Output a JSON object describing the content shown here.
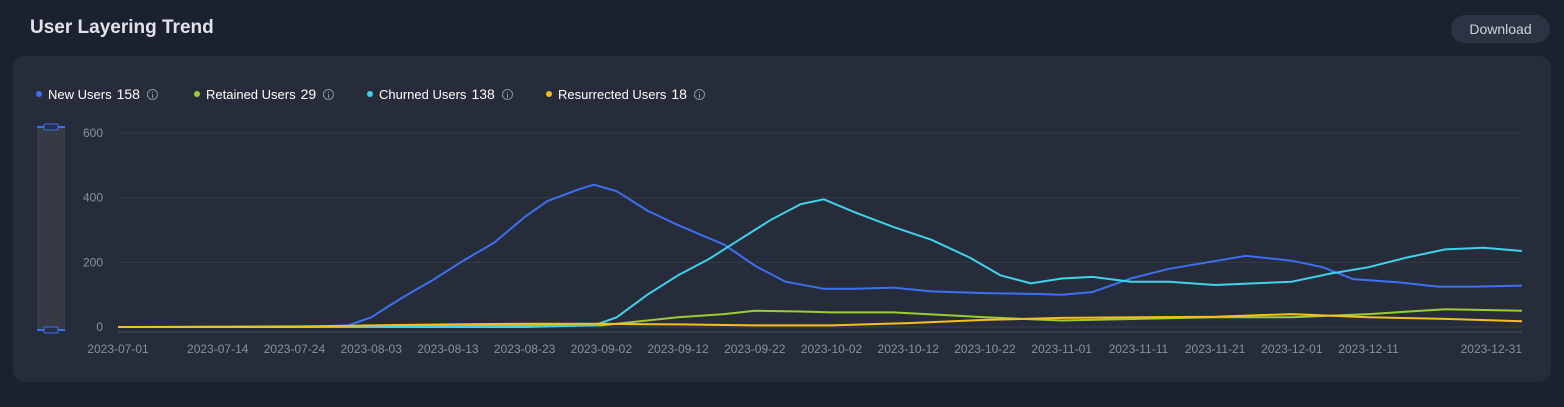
{
  "header": {
    "title": "User Layering Trend",
    "download_label": "Download"
  },
  "legend": [
    {
      "label": "New Users",
      "value": "158",
      "color": "#3c70f0"
    },
    {
      "label": "Retained Users",
      "value": "29",
      "color": "#9acd32"
    },
    {
      "label": "Churned Users",
      "value": "138",
      "color": "#3fd2ee"
    },
    {
      "label": "Resurrected Users",
      "value": "18",
      "color": "#f5be1e"
    }
  ],
  "chart_data": {
    "type": "line",
    "ylim": [
      0,
      600
    ],
    "yticks": [
      0,
      200,
      400,
      600
    ],
    "xlim": [
      "2023-07-01",
      "2023-12-31"
    ],
    "xticks": [
      "2023-07-01",
      "2023-07-14",
      "2023-07-24",
      "2023-08-03",
      "2023-08-13",
      "2023-08-23",
      "2023-09-02",
      "2023-09-12",
      "2023-09-22",
      "2023-10-02",
      "2023-10-12",
      "2023-10-22",
      "2023-11-01",
      "2023-11-11",
      "2023-11-21",
      "2023-12-01",
      "2023-12-11",
      "2023-12-31"
    ],
    "grid": true,
    "legend_position": "top-left",
    "series": [
      {
        "name": "New Users",
        "color": "#3c70f0",
        "x": [
          "2023-07-01",
          "2023-07-20",
          "2023-07-26",
          "2023-07-31",
          "2023-08-03",
          "2023-08-07",
          "2023-08-11",
          "2023-08-15",
          "2023-08-19",
          "2023-08-23",
          "2023-08-26",
          "2023-08-30",
          "2023-09-01",
          "2023-09-04",
          "2023-09-08",
          "2023-09-12",
          "2023-09-15",
          "2023-09-18",
          "2023-09-22",
          "2023-09-26",
          "2023-10-01",
          "2023-10-05",
          "2023-10-10",
          "2023-10-15",
          "2023-10-22",
          "2023-10-29",
          "2023-11-01",
          "2023-11-05",
          "2023-11-10",
          "2023-11-15",
          "2023-11-20",
          "2023-11-25",
          "2023-12-01",
          "2023-12-05",
          "2023-12-09",
          "2023-12-15",
          "2023-12-20",
          "2023-12-25",
          "2023-12-31"
        ],
        "y": [
          0,
          0,
          2,
          5,
          30,
          90,
          145,
          205,
          260,
          340,
          390,
          425,
          440,
          420,
          360,
          315,
          285,
          255,
          190,
          140,
          118,
          118,
          122,
          110,
          105,
          102,
          100,
          108,
          150,
          180,
          200,
          220,
          205,
          185,
          148,
          138,
          125,
          125,
          128
        ]
      },
      {
        "name": "Retained Users",
        "color": "#9acd32",
        "x": [
          "2023-07-01",
          "2023-08-03",
          "2023-08-23",
          "2023-09-02",
          "2023-09-06",
          "2023-09-12",
          "2023-09-18",
          "2023-09-22",
          "2023-09-28",
          "2023-10-02",
          "2023-10-10",
          "2023-10-16",
          "2023-10-22",
          "2023-11-01",
          "2023-11-11",
          "2023-11-21",
          "2023-12-01",
          "2023-12-11",
          "2023-12-21",
          "2023-12-31"
        ],
        "y": [
          0,
          3,
          5,
          5,
          15,
          30,
          40,
          50,
          48,
          45,
          45,
          38,
          30,
          20,
          25,
          30,
          30,
          40,
          55,
          50
        ]
      },
      {
        "name": "Churned Users",
        "color": "#3fd2ee",
        "x": [
          "2023-07-01",
          "2023-08-23",
          "2023-09-01",
          "2023-09-04",
          "2023-09-08",
          "2023-09-12",
          "2023-09-16",
          "2023-09-20",
          "2023-09-24",
          "2023-09-28",
          "2023-10-01",
          "2023-10-05",
          "2023-10-10",
          "2023-10-15",
          "2023-10-20",
          "2023-10-24",
          "2023-10-28",
          "2023-11-01",
          "2023-11-05",
          "2023-11-10",
          "2023-11-15",
          "2023-11-21",
          "2023-11-26",
          "2023-12-01",
          "2023-12-06",
          "2023-12-11",
          "2023-12-16",
          "2023-12-21",
          "2023-12-26",
          "2023-12-31"
        ],
        "y": [
          0,
          0,
          5,
          30,
          100,
          160,
          210,
          270,
          330,
          380,
          395,
          355,
          310,
          270,
          215,
          160,
          135,
          150,
          155,
          140,
          140,
          130,
          135,
          140,
          165,
          185,
          215,
          240,
          245,
          235
        ]
      },
      {
        "name": "Resurrected Users",
        "color": "#f5be1e",
        "x": [
          "2023-07-01",
          "2023-07-24",
          "2023-08-03",
          "2023-08-13",
          "2023-08-23",
          "2023-09-02",
          "2023-09-12",
          "2023-09-22",
          "2023-10-02",
          "2023-10-12",
          "2023-10-22",
          "2023-11-01",
          "2023-11-11",
          "2023-11-21",
          "2023-12-01",
          "2023-12-11",
          "2023-12-21",
          "2023-12-31"
        ],
        "y": [
          0,
          0,
          5,
          8,
          10,
          10,
          8,
          5,
          5,
          12,
          22,
          28,
          30,
          32,
          40,
          30,
          25,
          18
        ]
      }
    ]
  }
}
